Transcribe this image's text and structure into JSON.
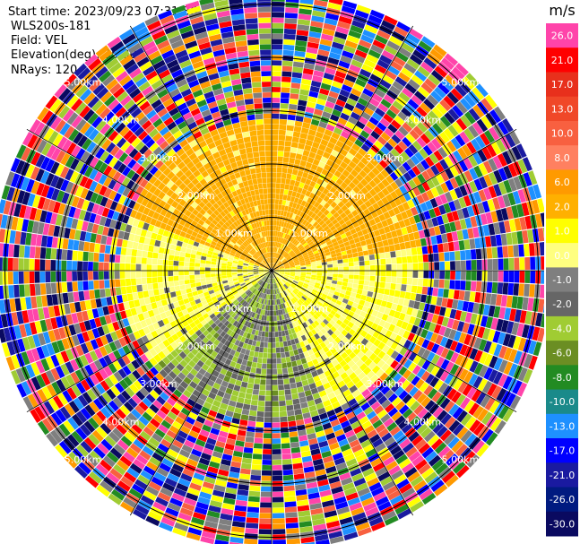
{
  "header": {
    "start_time": "Start time: 2023/09/23 07:31:36",
    "instrument": "WLS200s-181",
    "field": "Field: VEL",
    "elevation": "Elevation(deg): 35.30",
    "nrays": "NRays: 120"
  },
  "chart_data": {
    "type": "heatmap",
    "projection": "polar PPI",
    "field": "VEL",
    "units": "m/s",
    "nrays": 120,
    "elevation_deg": 35.3,
    "range_rings_km": [
      1.0,
      2.0,
      3.0,
      4.0,
      5.0
    ],
    "range_ring_labels": [
      "1.00km",
      "2.00km",
      "3.00km",
      "4.00km",
      "5.00km"
    ],
    "spokes_deg": [
      0,
      30,
      60,
      90,
      120,
      150,
      180,
      210,
      240,
      270,
      300,
      330
    ],
    "colorbar": {
      "title": "m/s",
      "ticks": [
        "26.0",
        "21.0",
        "17.0",
        "13.0",
        "10.0",
        "8.0",
        "6.0",
        "2.0",
        "1.0",
        "0.0",
        "-1.0",
        "-2.0",
        "-4.0",
        "-6.0",
        "-8.0",
        "-10.0",
        "-13.0",
        "-17.0",
        "-21.0",
        "-26.0",
        "-30.0"
      ],
      "colors": [
        "#ff44aa",
        "#ff0000",
        "#e8301c",
        "#f04828",
        "#f86040",
        "#ff8060",
        "#ff9a00",
        "#ffb000",
        "#ffff00",
        "#ffff80",
        "#7f7f7f",
        "#666666",
        "#a0cc33",
        "#6b8e23",
        "#228b22",
        "#1a8a8a",
        "#1e90ff",
        "#0000ff",
        "#1a1aa0",
        "#001a80",
        "#0a0a60"
      ],
      "vmin": -30.0,
      "vmax": 30.0
    },
    "regions": [
      {
        "range_km": [
          0.0,
          2.9
        ],
        "azimuth_deg": [
          290,
          80
        ],
        "dominant": "yellow",
        "value_range": [
          1.0,
          2.0
        ]
      },
      {
        "range_km": [
          0.0,
          2.9
        ],
        "azimuth_deg": [
          80,
          160
        ],
        "dominant": "gray",
        "value_range": [
          -1.0,
          1.0
        ]
      },
      {
        "range_km": [
          0.0,
          2.9
        ],
        "azimuth_deg": [
          160,
          230
        ],
        "dominant": "green",
        "value_range": [
          -6.0,
          -1.0
        ]
      },
      {
        "range_km": [
          0.0,
          2.9
        ],
        "azimuth_deg": [
          230,
          290
        ],
        "dominant": "gray",
        "value_range": [
          -1.0,
          1.0
        ]
      },
      {
        "range_km": [
          2.9,
          5.2
        ],
        "azimuth_deg": [
          0,
          360
        ],
        "dominant": "noise",
        "value_range": [
          -30.0,
          26.0
        ]
      }
    ]
  }
}
